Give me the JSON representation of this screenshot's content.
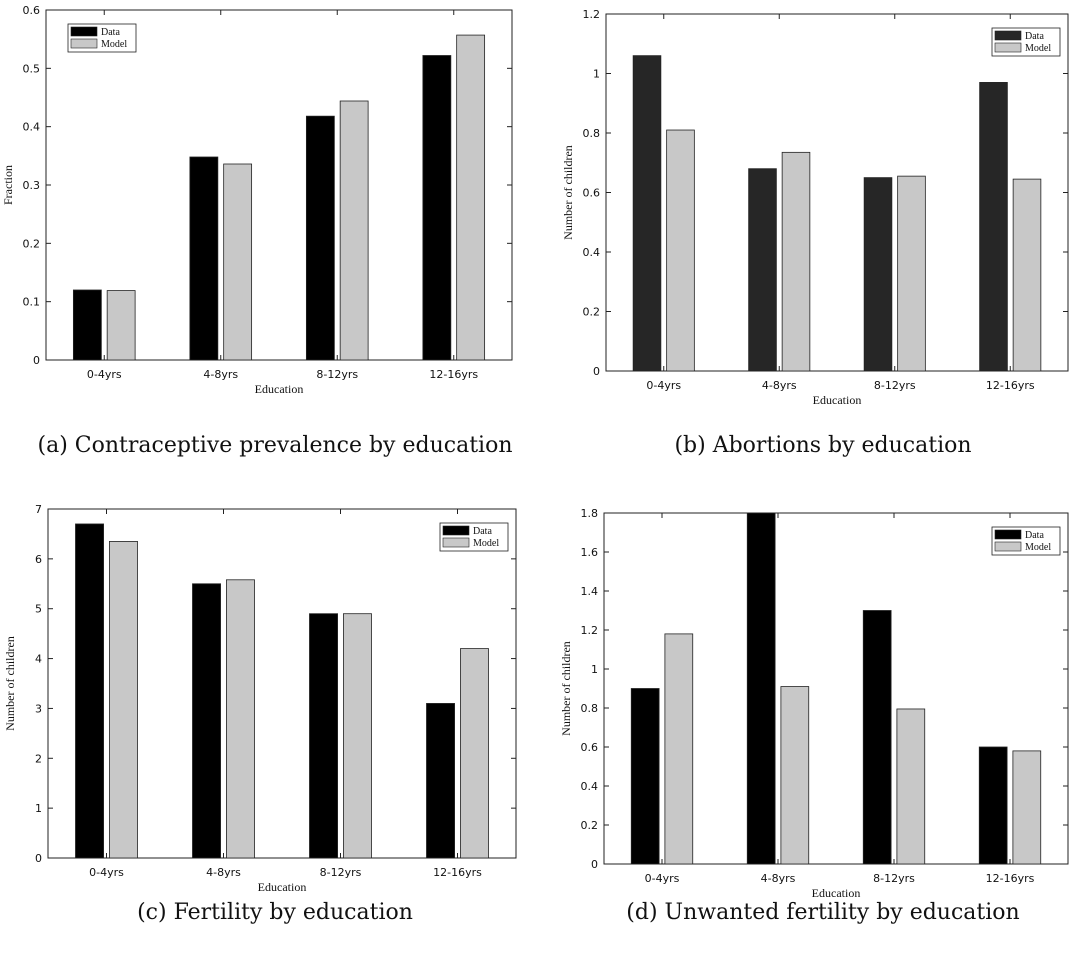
{
  "chart_data": [
    {
      "type": "bar",
      "caption": "(a)  Contraceptive prevalence by education",
      "xlabel": "Education",
      "ylabel": "Fraction",
      "categories": [
        "0-4yrs",
        "4-8yrs",
        "8-12yrs",
        "12-16yrs"
      ],
      "ylim": [
        0,
        0.6
      ],
      "yticks": [
        "0",
        "0.1",
        "0.2",
        "0.3",
        "0.4",
        "0.5",
        "0.6"
      ],
      "legend_position": "top-left",
      "series": [
        {
          "name": "Data",
          "color": "#000000",
          "values": [
            0.12,
            0.348,
            0.418,
            0.522
          ]
        },
        {
          "name": "Model",
          "color": "#c8c8c8",
          "values": [
            0.119,
            0.336,
            0.444,
            0.557
          ]
        }
      ]
    },
    {
      "type": "bar",
      "caption": "(b)  Abortions by education",
      "xlabel": "Education",
      "ylabel": "Number of children",
      "categories": [
        "0-4yrs",
        "4-8yrs",
        "8-12yrs",
        "12-16yrs"
      ],
      "ylim": [
        0,
        1.2
      ],
      "yticks": [
        "0",
        "0.2",
        "0.4",
        "0.6",
        "0.8",
        "1",
        "1.2"
      ],
      "legend_position": "top-right",
      "series": [
        {
          "name": "Data",
          "color": "#262626",
          "values": [
            1.06,
            0.68,
            0.65,
            0.97
          ]
        },
        {
          "name": "Model",
          "color": "#c8c8c8",
          "values": [
            0.81,
            0.735,
            0.655,
            0.645
          ]
        }
      ]
    },
    {
      "type": "bar",
      "caption": "(c)  Fertility by education",
      "xlabel": "Education",
      "ylabel": "Number of children",
      "categories": [
        "0-4yrs",
        "4-8yrs",
        "8-12yrs",
        "12-16yrs"
      ],
      "ylim": [
        0,
        7
      ],
      "yticks": [
        "0",
        "1",
        "2",
        "3",
        "4",
        "5",
        "6",
        "7"
      ],
      "legend_position": "top-right",
      "series": [
        {
          "name": "Data",
          "color": "#000000",
          "values": [
            6.7,
            5.5,
            4.9,
            3.1
          ]
        },
        {
          "name": "Model",
          "color": "#c8c8c8",
          "values": [
            6.35,
            5.58,
            4.9,
            4.2
          ]
        }
      ]
    },
    {
      "type": "bar",
      "caption": "(d)  Unwanted fertility by education",
      "xlabel": "Education",
      "ylabel": "Number of children",
      "categories": [
        "0-4yrs",
        "4-8yrs",
        "8-12yrs",
        "12-16yrs"
      ],
      "ylim": [
        0,
        1.8
      ],
      "yticks": [
        "0",
        "0.2",
        "0.4",
        "0.6",
        "0.8",
        "1",
        "1.2",
        "1.4",
        "1.6",
        "1.8"
      ],
      "legend_position": "top-right",
      "series": [
        {
          "name": "Data",
          "color": "#000000",
          "values": [
            0.9,
            1.8,
            1.3,
            0.6
          ]
        },
        {
          "name": "Model",
          "color": "#c8c8c8",
          "values": [
            1.18,
            0.91,
            0.795,
            0.58
          ]
        }
      ]
    }
  ]
}
